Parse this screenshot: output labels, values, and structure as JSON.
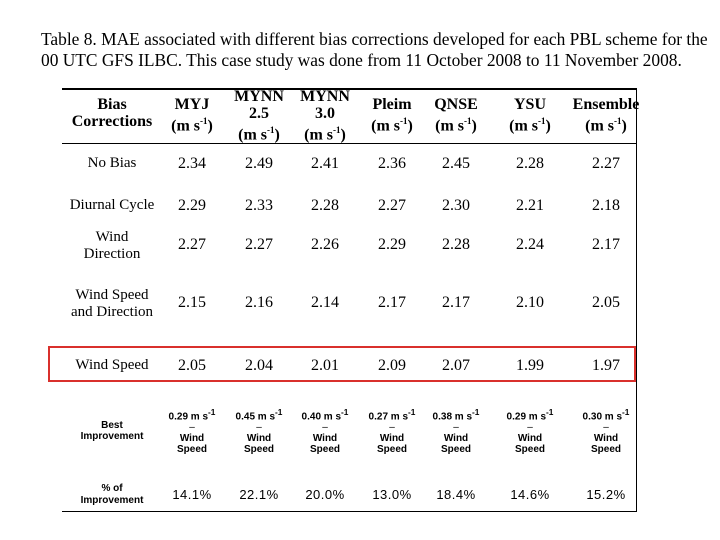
{
  "caption": {
    "line1": "Table 8.  MAE associated with different bias corrections developed for each PBL scheme for the",
    "line2": "00 UTC GFS ILBC.  This case study was done from 11 October 2008 to 11 November 2008."
  },
  "headers": [
    {
      "lines": [
        "Bias",
        "Corrections"
      ],
      "unit": ""
    },
    {
      "lines": [
        "MYJ"
      ],
      "unit": "(m s",
      "exp": "-1",
      "close": ")"
    },
    {
      "lines": [
        "MYNN",
        "2.5"
      ],
      "unit": "(m s",
      "exp": "-1",
      "close": ")"
    },
    {
      "lines": [
        "MYNN",
        "3.0"
      ],
      "unit": "(m s",
      "exp": "-1",
      "close": ")"
    },
    {
      "lines": [
        "Pleim"
      ],
      "unit": "(m s",
      "exp": "-1",
      "close": ")"
    },
    {
      "lines": [
        "QNSE"
      ],
      "unit": "(m s",
      "exp": "-1",
      "close": ")"
    },
    {
      "lines": [
        "YSU"
      ],
      "unit": "(m s",
      "exp": "-1",
      "close": ")"
    },
    {
      "lines": [
        "Ensemble"
      ],
      "unit": "(m s",
      "exp": "-1",
      "close": ")"
    }
  ],
  "rows": [
    {
      "label": [
        "No Bias"
      ],
      "values": [
        "2.34",
        "2.49",
        "2.41",
        "2.36",
        "2.45",
        "2.28",
        "2.27"
      ]
    },
    {
      "label": [
        "Diurnal Cycle"
      ],
      "values": [
        "2.29",
        "2.33",
        "2.28",
        "2.27",
        "2.30",
        "2.21",
        "2.18"
      ]
    },
    {
      "label": [
        "Wind",
        "Direction"
      ],
      "values": [
        "2.27",
        "2.27",
        "2.26",
        "2.29",
        "2.28",
        "2.24",
        "2.17"
      ]
    },
    {
      "label": [
        "Wind Speed",
        "and Direction"
      ],
      "values": [
        "2.15",
        "2.16",
        "2.14",
        "2.17",
        "2.17",
        "2.10",
        "2.05"
      ]
    },
    {
      "label": [
        "Wind Speed"
      ],
      "values": [
        "2.05",
        "2.04",
        "2.01",
        "2.09",
        "2.07",
        "1.99",
        "1.97"
      ],
      "highlighted": true
    }
  ],
  "best_improvement": {
    "label": [
      "Best",
      "Improvement"
    ],
    "values": [
      "0.29 m s-1",
      "0.45 m s-1",
      "0.40 m s-1",
      "0.27 m s-1",
      "0.38 m s-1",
      "0.29 m s-1",
      "0.30 m s-1"
    ],
    "dash": "–",
    "method": [
      "Wind",
      "Speed"
    ]
  },
  "percent_improvement": {
    "label": [
      "% of",
      "Improvement"
    ],
    "values": [
      "14.1%",
      "22.1%",
      "20.0%",
      "13.0%",
      "18.4%",
      "14.6%",
      "15.2%"
    ]
  },
  "highlight_color": "#d9302c"
}
